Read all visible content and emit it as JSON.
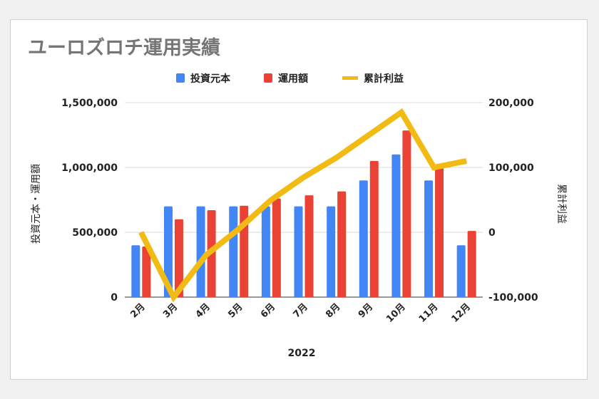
{
  "chart_data": {
    "type": "bar",
    "title": "ユーロズロチ運用実績",
    "xlabel": "2022",
    "ylabel_left": "投資元本・運用額",
    "ylabel_right": "累計利益",
    "categories": [
      "2月",
      "3月",
      "4月",
      "5月",
      "6月",
      "7月",
      "8月",
      "9月",
      "10月",
      "11月",
      "12月"
    ],
    "ylim_left": [
      0,
      1500000
    ],
    "ylim_right": [
      -100000,
      200000
    ],
    "yticks_left": [
      "0",
      "500,000",
      "1,000,000",
      "1,500,000"
    ],
    "yticks_right": [
      "-100,000",
      "0",
      "100,000",
      "200,000"
    ],
    "legend_position": "top-center",
    "grid": true,
    "series": [
      {
        "name": "投資元本",
        "type": "bar",
        "axis": "left",
        "color": "#4285f4",
        "values": [
          400000,
          700000,
          700000,
          700000,
          700000,
          700000,
          700000,
          900000,
          1100000,
          900000,
          400000
        ]
      },
      {
        "name": "運用額",
        "type": "bar",
        "axis": "left",
        "color": "#ea4335",
        "values": [
          390000,
          600000,
          670000,
          705000,
          760000,
          785000,
          815000,
          1050000,
          1285000,
          1000000,
          510000
        ]
      },
      {
        "name": "累計利益",
        "type": "line",
        "axis": "right",
        "color": "#f1bb14",
        "values": [
          0,
          -100000,
          -35000,
          5000,
          50000,
          85000,
          115000,
          150000,
          185000,
          100000,
          110000
        ]
      }
    ]
  }
}
